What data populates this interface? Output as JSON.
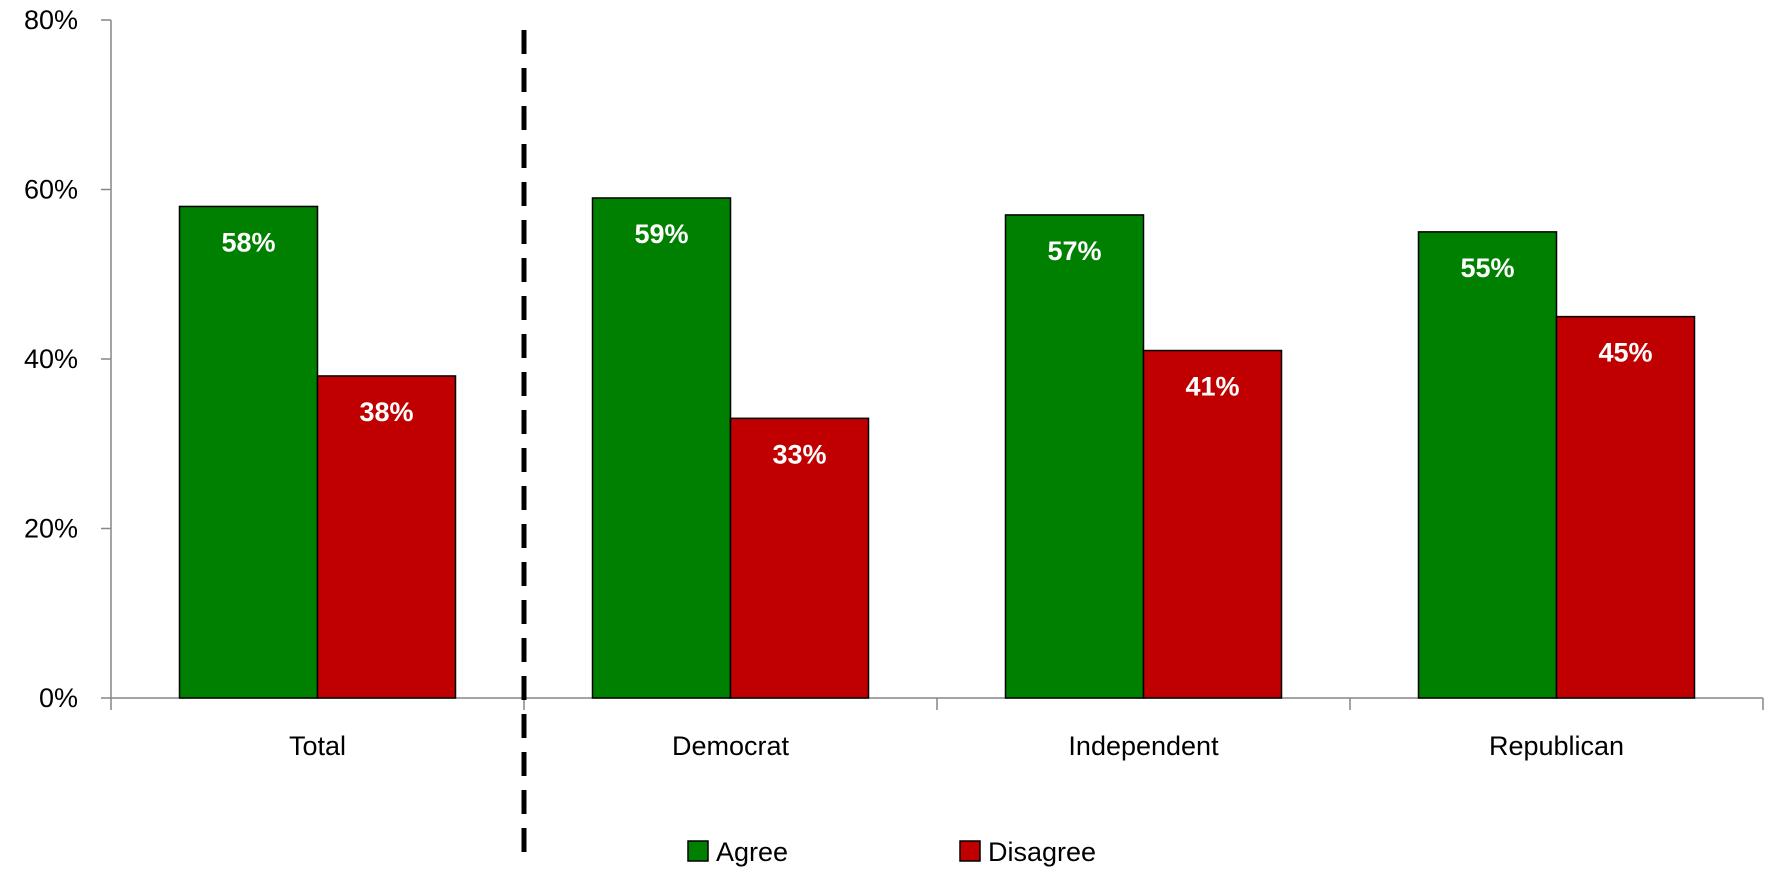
{
  "chart_data": {
    "type": "bar",
    "categories": [
      "Total",
      "Democrat",
      "Independent",
      "Republican"
    ],
    "series": [
      {
        "name": "Agree",
        "values": [
          58,
          59,
          57,
          55
        ],
        "color": "#008000"
      },
      {
        "name": "Disagree",
        "values": [
          38,
          33,
          41,
          45
        ],
        "color": "#c00000"
      }
    ],
    "data_labels": [
      [
        "58%",
        "59%",
        "57%",
        "55%"
      ],
      [
        "38%",
        "33%",
        "41%",
        "45%"
      ]
    ],
    "yticks": [
      0,
      20,
      40,
      60,
      80
    ],
    "ytick_labels": [
      "0%",
      "20%",
      "40%",
      "60%",
      "80%"
    ],
    "ylim": [
      0,
      80
    ],
    "title": "",
    "xlabel": "",
    "ylabel": "",
    "grid": false,
    "legend": "bottom-center",
    "divider_after_category": "Total"
  }
}
